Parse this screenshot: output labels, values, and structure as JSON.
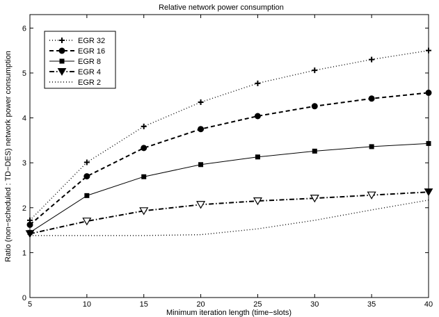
{
  "chart_data": {
    "type": "line",
    "title": "Relative network power consumption",
    "xlabel": "Minimum iteration length (time−slots)",
    "ylabel": "Ratio (non−scheduled : TD−DES) network power consumption",
    "x": [
      5,
      10,
      15,
      20,
      25,
      30,
      35,
      40
    ],
    "xlim": [
      5,
      40
    ],
    "ylim": [
      0,
      6.3
    ],
    "xticks": [
      "5",
      "10",
      "15",
      "20",
      "25",
      "30",
      "35",
      "40"
    ],
    "yticks": [
      "0",
      "1",
      "2",
      "3",
      "4",
      "5",
      "6"
    ],
    "grid": false,
    "legend_position": "top-left",
    "series": [
      {
        "name": "EGR 32",
        "marker": "plus",
        "line_style": "dotted",
        "values": [
          1.72,
          3.01,
          3.81,
          4.35,
          4.77,
          5.06,
          5.3,
          5.5
        ]
      },
      {
        "name": "EGR 16",
        "marker": "circle",
        "line_style": "dashed",
        "values": [
          1.62,
          2.7,
          3.33,
          3.75,
          4.04,
          4.26,
          4.43,
          4.56
        ]
      },
      {
        "name": "EGR 8",
        "marker": "square",
        "line_style": "solid",
        "values": [
          1.45,
          2.27,
          2.69,
          2.96,
          3.13,
          3.26,
          3.36,
          3.43
        ]
      },
      {
        "name": "EGR 4",
        "marker": "triangle-down",
        "line_style": "dash-dot",
        "values": [
          1.42,
          1.7,
          1.93,
          2.07,
          2.15,
          2.21,
          2.28,
          2.35
        ]
      },
      {
        "name": "EGR 2",
        "marker": "none",
        "line_style": "dotted",
        "values": [
          1.38,
          1.38,
          1.38,
          1.4,
          1.53,
          1.72,
          1.95,
          2.17
        ]
      }
    ]
  }
}
